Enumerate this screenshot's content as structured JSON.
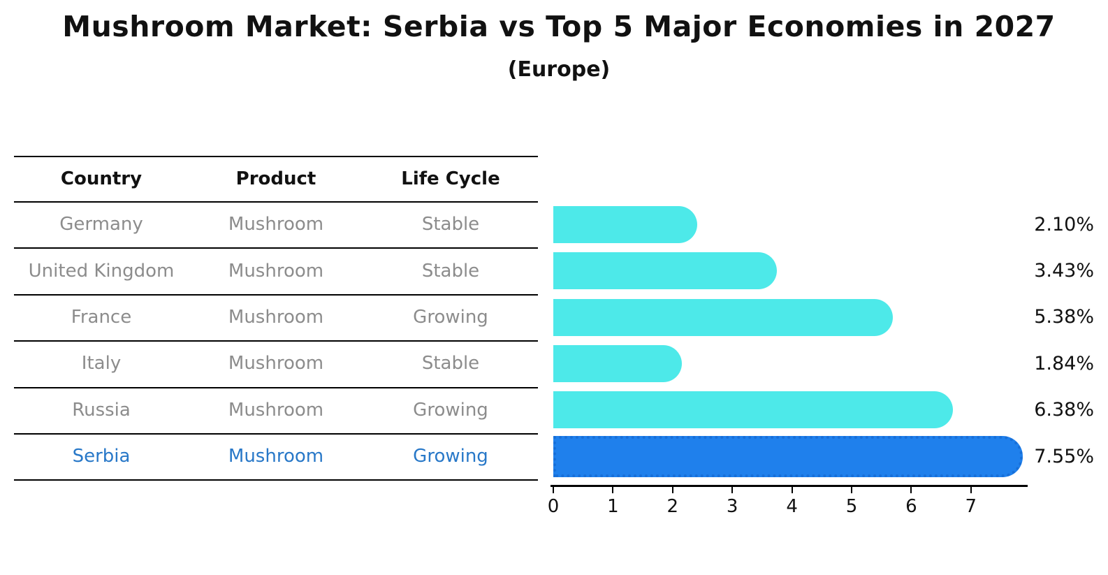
{
  "title": "Mushroom Market: Serbia vs Top 5 Major Economies in 2027",
  "subtitle": "(Europe)",
  "table": {
    "headers": [
      "Country",
      "Product",
      "Life Cycle"
    ],
    "rows": [
      {
        "country": "Germany",
        "product": "Mushroom",
        "life_cycle": "Stable",
        "highlight": false
      },
      {
        "country": "United Kingdom",
        "product": "Mushroom",
        "life_cycle": "Stable",
        "highlight": false
      },
      {
        "country": "France",
        "product": "Mushroom",
        "life_cycle": "Growing",
        "highlight": false
      },
      {
        "country": "Italy",
        "product": "Mushroom",
        "life_cycle": "Stable",
        "highlight": false
      },
      {
        "country": "Russia",
        "product": "Mushroom",
        "life_cycle": "Growing",
        "highlight": false
      },
      {
        "country": "Serbia",
        "product": "Mushroom",
        "life_cycle": "Growing",
        "highlight": true
      }
    ]
  },
  "chart_data": {
    "type": "bar",
    "orientation": "horizontal",
    "title": "Mushroom Market: Serbia vs Top 5 Major Economies in 2027",
    "subtitle": "(Europe)",
    "categories": [
      "Germany",
      "United Kingdom",
      "France",
      "Italy",
      "Russia",
      "Serbia"
    ],
    "values": [
      2.1,
      3.43,
      5.38,
      1.84,
      6.38,
      7.55
    ],
    "value_labels": [
      "2.10%",
      "3.43%",
      "5.38%",
      "1.84%",
      "6.38%",
      "7.55%"
    ],
    "x_ticks": [
      "0",
      "1",
      "2",
      "3",
      "4",
      "5",
      "6",
      "7"
    ],
    "xlim": [
      0,
      7.9
    ],
    "grid": false,
    "legend": false,
    "highlight_index": 5,
    "bar_color": "#4DE9E9",
    "highlight_bar_color": "#1F80EC",
    "highlight_text_color": "#2878C8",
    "axis_color": "#000000"
  }
}
